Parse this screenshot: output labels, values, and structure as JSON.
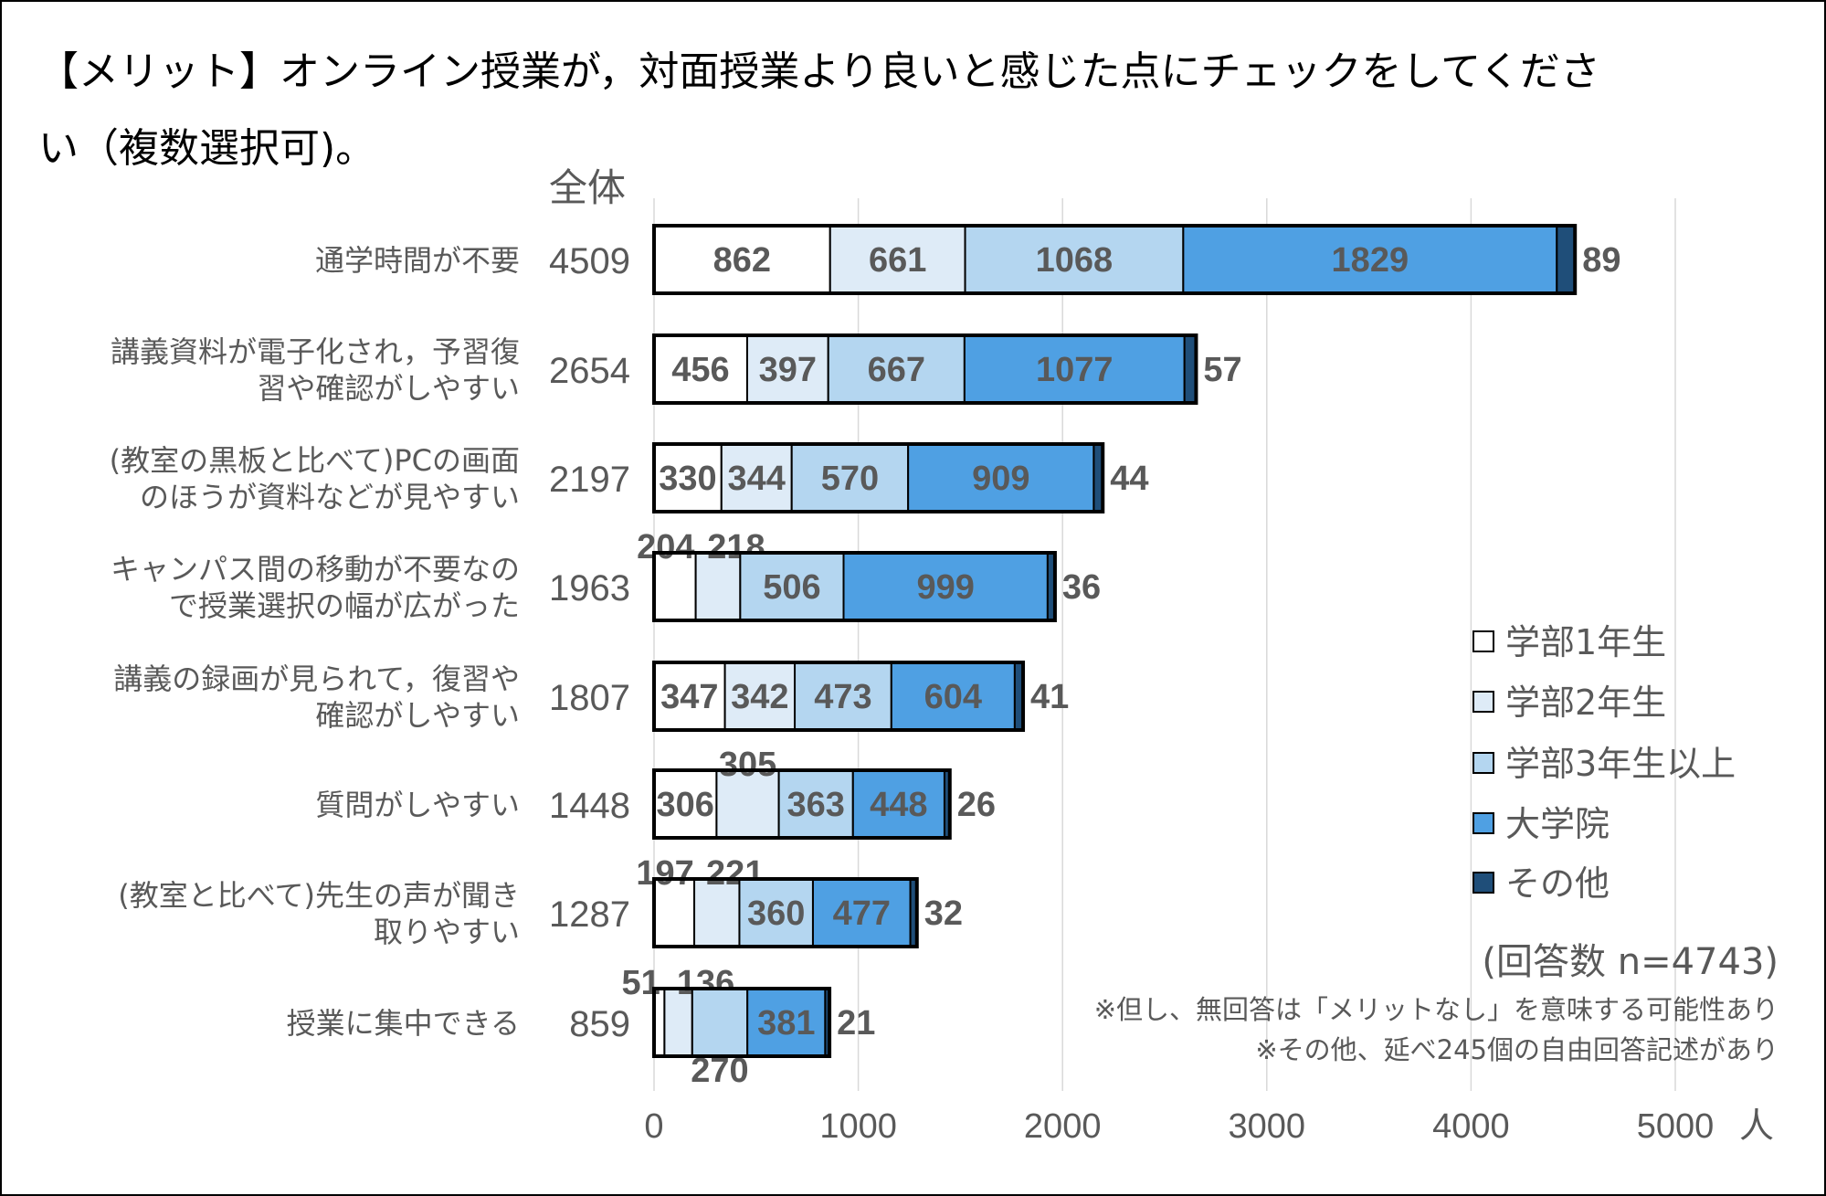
{
  "title_line1": "【メリット】オンライン授業が，対面授業より良いと感じた点にチェックをしてくださ",
  "title_line2": "い（複数選択可)。",
  "chart_data": {
    "type": "bar",
    "orientation": "horizontal",
    "stacked": true,
    "total_header": "全体",
    "categories": [
      [
        "通学時間が不要"
      ],
      [
        "講義資料が電子化され，予習復",
        "習や確認がしやすい"
      ],
      [
        "(教室の黒板と比べて)PCの画面",
        "のほうが資料などが見やすい"
      ],
      [
        "キャンパス間の移動が不要なの",
        "で授業選択の幅が広がった"
      ],
      [
        "講義の録画が見られて，復習や",
        "確認がしやすい"
      ],
      [
        "質問がしやすい"
      ],
      [
        "(教室と比べて)先生の声が聞き",
        "取りやすい"
      ],
      [
        "授業に集中できる"
      ]
    ],
    "totals": [
      4509,
      2654,
      2197,
      1963,
      1807,
      1448,
      1287,
      859
    ],
    "series": [
      {
        "name": "学部1年生",
        "color": "#ffffff",
        "values": [
          862,
          456,
          330,
          204,
          347,
          306,
          197,
          51
        ]
      },
      {
        "name": "学部2年生",
        "color": "#deebf7",
        "values": [
          661,
          397,
          344,
          218,
          342,
          305,
          221,
          136
        ]
      },
      {
        "name": "学部3年生以上",
        "color": "#b4d6f0",
        "values": [
          1068,
          667,
          570,
          506,
          473,
          363,
          360,
          270
        ]
      },
      {
        "name": "大学院",
        "color": "#4fa0e3",
        "values": [
          1829,
          1077,
          909,
          999,
          604,
          448,
          477,
          381
        ]
      },
      {
        "name": "その他",
        "color": "#1f4e79",
        "values": [
          89,
          57,
          44,
          36,
          41,
          26,
          32,
          21
        ]
      }
    ],
    "xlim": [
      0,
      5000
    ],
    "xticks": [
      0,
      1000,
      2000,
      3000,
      4000,
      5000
    ],
    "xunit": "人",
    "grid": true,
    "legend": "right"
  },
  "notes": {
    "n": "(回答数 n=4743)",
    "note1": "※但し、無回答は「メリットなし」を意味する可能性あり",
    "note2": "※その他、延べ245個の自由回答記述があり"
  }
}
